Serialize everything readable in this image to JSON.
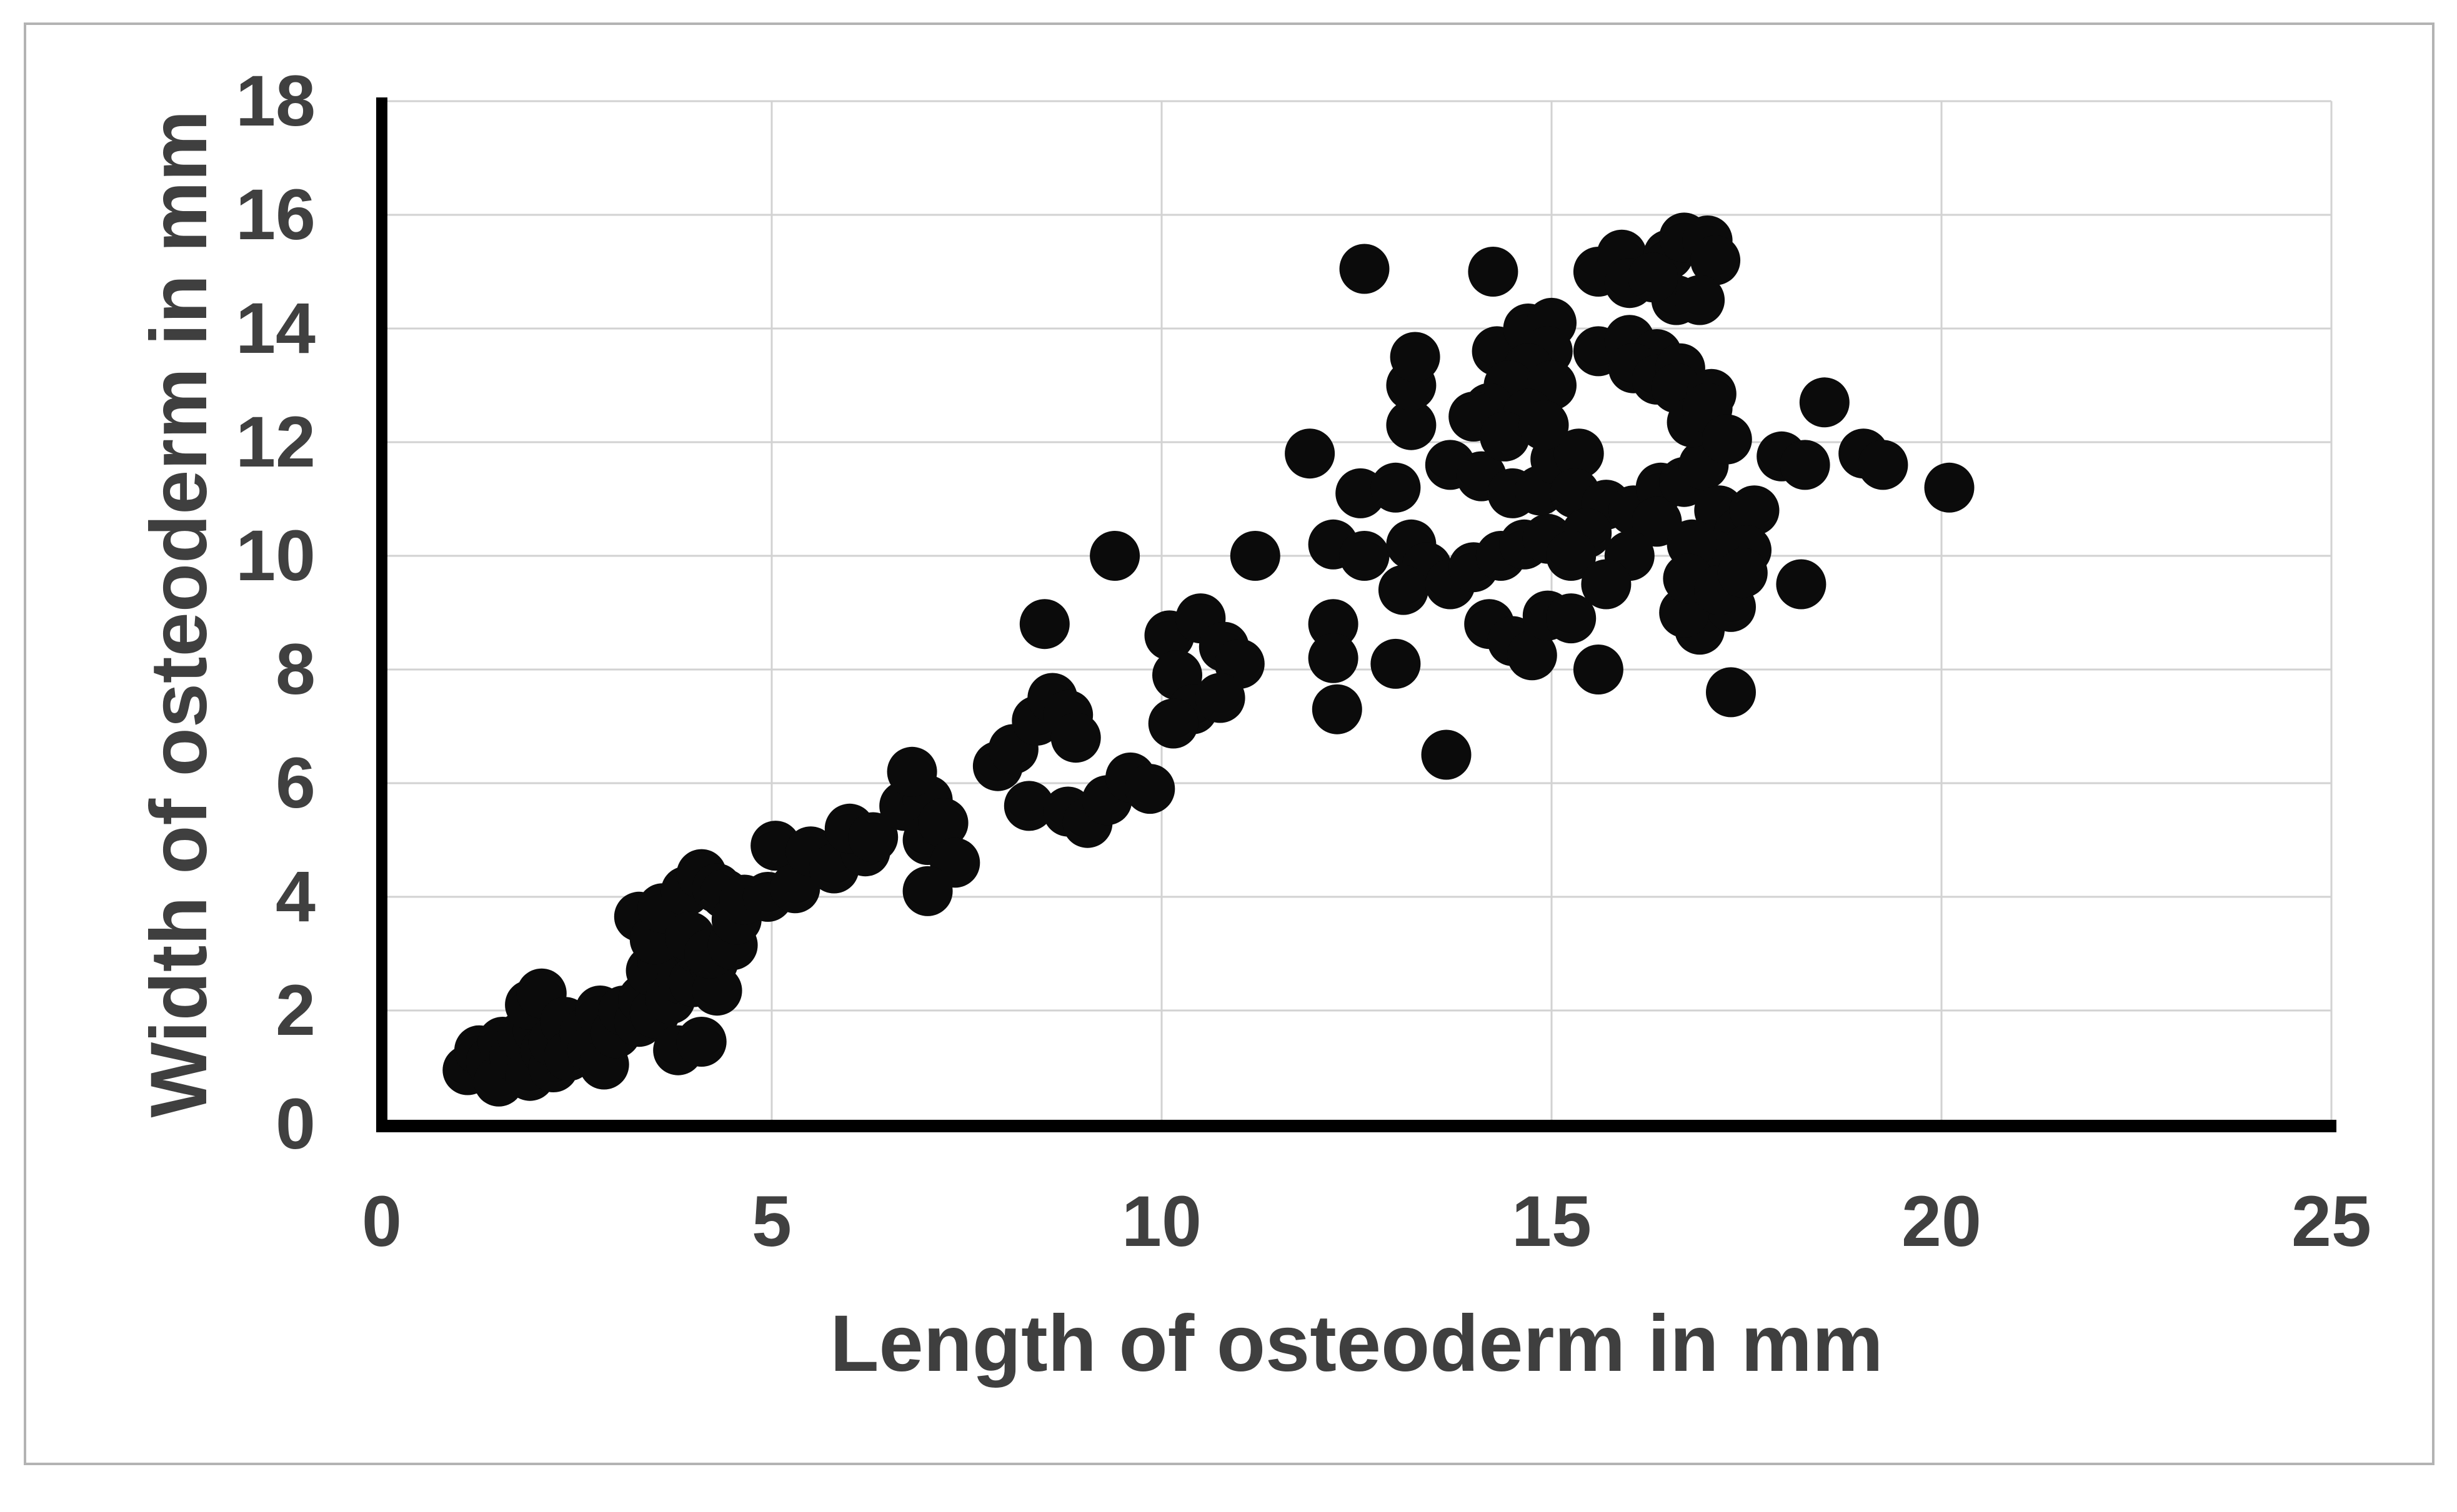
{
  "figure": {
    "background": "#ffffff",
    "border_color": "#b3b3b3"
  },
  "chart_data": {
    "type": "scatter",
    "title": "",
    "xlabel": "Length of osteoderm in mm",
    "ylabel": "Width of osteoderm in mm",
    "xlim": [
      0,
      25
    ],
    "ylim": [
      0,
      18
    ],
    "x_ticks": [
      "0",
      "5",
      "10",
      "15",
      "20",
      "25"
    ],
    "y_ticks": [
      "0",
      "2",
      "4",
      "6",
      "8",
      "10",
      "12",
      "14",
      "16",
      "18"
    ],
    "grid": true,
    "legend_position": "none",
    "marker": {
      "shape": "circle",
      "color": "#0b0b0b"
    },
    "axis_color": "#000000",
    "gridline_color": "#d2d2d2",
    "tick_label_color": "#404040",
    "axis_title_color": "#3f3f3f",
    "points": [
      [
        1.1,
        0.95
      ],
      [
        1.25,
        1.3
      ],
      [
        1.4,
        1.1
      ],
      [
        1.5,
        0.75
      ],
      [
        1.55,
        1.45
      ],
      [
        1.7,
        1.2
      ],
      [
        1.8,
        1.55
      ],
      [
        1.9,
        0.85
      ],
      [
        2.0,
        1.65
      ],
      [
        2.1,
        1.3
      ],
      [
        2.2,
        1.0
      ],
      [
        1.9,
        2.1
      ],
      [
        2.05,
        2.3
      ],
      [
        2.2,
        1.45
      ],
      [
        2.35,
        1.8
      ],
      [
        2.4,
        1.2
      ],
      [
        2.6,
        1.6
      ],
      [
        2.7,
        1.3
      ],
      [
        2.8,
        2.0
      ],
      [
        2.85,
        1.05
      ],
      [
        3.0,
        1.6
      ],
      [
        3.1,
        2.0
      ],
      [
        3.3,
        1.8
      ],
      [
        3.35,
        2.2
      ],
      [
        3.5,
        1.95
      ],
      [
        3.8,
        1.3
      ],
      [
        4.1,
        1.45
      ],
      [
        3.45,
        2.7
      ],
      [
        3.6,
        2.85
      ],
      [
        3.7,
        2.2
      ],
      [
        3.75,
        3.0
      ],
      [
        3.85,
        2.55
      ],
      [
        4.0,
        2.5
      ],
      [
        4.05,
        3.1
      ],
      [
        4.25,
        2.85
      ],
      [
        4.3,
        2.35
      ],
      [
        3.3,
        3.65
      ],
      [
        3.5,
        3.25
      ],
      [
        3.6,
        3.8
      ],
      [
        3.9,
        4.1
      ],
      [
        3.95,
        3.3
      ],
      [
        4.1,
        4.4
      ],
      [
        4.2,
        3.0
      ],
      [
        4.3,
        4.15
      ],
      [
        4.4,
        4.05
      ],
      [
        4.5,
        3.15
      ],
      [
        4.55,
        3.6
      ],
      [
        4.65,
        3.95
      ],
      [
        4.95,
        4.0
      ],
      [
        5.05,
        4.9
      ],
      [
        5.3,
        4.15
      ],
      [
        5.5,
        4.8
      ],
      [
        5.8,
        4.5
      ],
      [
        6.2,
        4.8
      ],
      [
        6.0,
        5.2
      ],
      [
        6.3,
        5.05
      ],
      [
        6.7,
        5.6
      ],
      [
        7.0,
        5.7
      ],
      [
        7.0,
        5.0
      ],
      [
        7.2,
        5.3
      ],
      [
        7.35,
        4.6
      ],
      [
        7.0,
        4.1
      ],
      [
        6.8,
        6.2
      ],
      [
        7.9,
        6.3
      ],
      [
        8.1,
        6.6
      ],
      [
        8.4,
        7.1
      ],
      [
        8.6,
        7.5
      ],
      [
        8.8,
        7.2
      ],
      [
        8.9,
        6.8
      ],
      [
        8.3,
        5.6
      ],
      [
        8.8,
        5.5
      ],
      [
        9.05,
        5.3
      ],
      [
        9.3,
        5.7
      ],
      [
        9.6,
        6.1
      ],
      [
        9.85,
        5.9
      ],
      [
        8.5,
        8.8
      ],
      [
        9.4,
        10.0
      ],
      [
        10.1,
        8.6
      ],
      [
        10.5,
        8.9
      ],
      [
        10.2,
        7.9
      ],
      [
        10.8,
        8.4
      ],
      [
        11.0,
        8.1
      ],
      [
        10.4,
        7.3
      ],
      [
        10.15,
        7.05
      ],
      [
        10.75,
        7.5
      ],
      [
        11.2,
        10.0
      ],
      [
        11.9,
        11.8
      ],
      [
        12.55,
        11.1
      ],
      [
        13.0,
        11.2
      ],
      [
        13.2,
        12.3
      ],
      [
        13.2,
        13.0
      ],
      [
        13.25,
        13.5
      ],
      [
        12.2,
        10.2
      ],
      [
        12.6,
        10.0
      ],
      [
        13.2,
        10.2
      ],
      [
        13.4,
        9.8
      ],
      [
        13.1,
        9.4
      ],
      [
        13.7,
        9.5
      ],
      [
        14.0,
        9.8
      ],
      [
        12.2,
        8.8
      ],
      [
        12.2,
        8.2
      ],
      [
        13.0,
        8.1
      ],
      [
        12.25,
        7.3
      ],
      [
        13.65,
        6.5
      ],
      [
        14.2,
        8.8
      ],
      [
        14.5,
        8.5
      ],
      [
        14.75,
        8.25
      ],
      [
        14.95,
        8.95
      ],
      [
        15.25,
        8.9
      ],
      [
        15.6,
        8.0
      ],
      [
        17.3,
        7.6
      ],
      [
        16.9,
        8.7
      ],
      [
        17.3,
        9.1
      ],
      [
        18.2,
        9.5
      ],
      [
        16.7,
        9.0
      ],
      [
        14.35,
        10.0
      ],
      [
        14.65,
        10.2
      ],
      [
        14.95,
        10.3
      ],
      [
        13.7,
        11.6
      ],
      [
        14.1,
        11.4
      ],
      [
        14.5,
        11.1
      ],
      [
        14.85,
        11.15
      ],
      [
        15.05,
        11.7
      ],
      [
        15.35,
        11.8
      ],
      [
        15.3,
        11.1
      ],
      [
        15.7,
        10.9
      ],
      [
        15.45,
        10.4
      ],
      [
        15.25,
        10.0
      ],
      [
        16.05,
        10.8
      ],
      [
        16.4,
        11.2
      ],
      [
        16.35,
        10.6
      ],
      [
        16.0,
        10.0
      ],
      [
        15.7,
        9.5
      ],
      [
        16.7,
        11.3
      ],
      [
        16.95,
        11.6
      ],
      [
        17.15,
        10.8
      ],
      [
        17.4,
        10.4
      ],
      [
        17.6,
        10.8
      ],
      [
        17.5,
        10.1
      ],
      [
        17.1,
        10.0
      ],
      [
        16.8,
        10.2
      ],
      [
        16.75,
        9.6
      ],
      [
        17.15,
        9.4
      ],
      [
        17.45,
        9.7
      ],
      [
        14.3,
        13.6
      ],
      [
        14.7,
        14.0
      ],
      [
        15.0,
        14.1
      ],
      [
        14.95,
        13.6
      ],
      [
        14.7,
        13.3
      ],
      [
        14.45,
        13.0
      ],
      [
        15.0,
        13.0
      ],
      [
        14.2,
        12.6
      ],
      [
        14.7,
        12.5
      ],
      [
        14.0,
        12.45
      ],
      [
        14.4,
        12.1
      ],
      [
        14.9,
        12.3
      ],
      [
        12.6,
        15.05
      ],
      [
        14.25,
        15.0
      ],
      [
        15.6,
        15.0
      ],
      [
        15.9,
        15.3
      ],
      [
        16.0,
        14.8
      ],
      [
        16.5,
        15.3
      ],
      [
        16.7,
        15.6
      ],
      [
        17.0,
        15.55
      ],
      [
        17.1,
        15.2
      ],
      [
        16.6,
        14.5
      ],
      [
        16.9,
        14.5
      ],
      [
        16.3,
        14.9
      ],
      [
        15.6,
        13.6
      ],
      [
        16.0,
        13.8
      ],
      [
        16.35,
        13.55
      ],
      [
        16.05,
        13.3
      ],
      [
        16.35,
        13.1
      ],
      [
        16.65,
        13.3
      ],
      [
        16.6,
        12.95
      ],
      [
        17.05,
        12.85
      ],
      [
        16.8,
        12.35
      ],
      [
        17.0,
        12.6
      ],
      [
        17.25,
        12.05
      ],
      [
        18.5,
        12.7
      ],
      [
        17.95,
        11.75
      ],
      [
        18.25,
        11.6
      ],
      [
        19.0,
        11.8
      ],
      [
        19.25,
        11.6
      ],
      [
        20.1,
        11.2
      ]
    ]
  }
}
